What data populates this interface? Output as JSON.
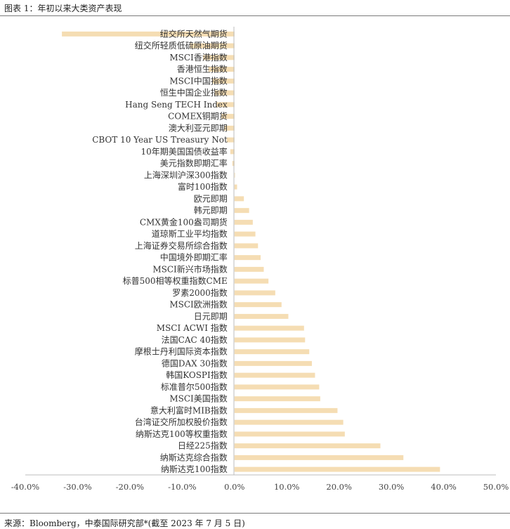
{
  "figure_title": "图表 1：年初以来大类资产表现",
  "source_note": "来源：Bloomberg，中泰国际研究部*(截至 2023 年 7 月 5 日)",
  "chart_data": {
    "type": "bar",
    "orientation": "horizontal",
    "title": "",
    "xlabel": "",
    "ylabel": "",
    "xlim": [
      -40,
      50
    ],
    "x_ticks": [
      "-40.0%",
      "-30.0%",
      "-20.0%",
      "-10.0%",
      "0.0%",
      "10.0%",
      "20.0%",
      "30.0%",
      "40.0%",
      "50.0%"
    ],
    "grid": false,
    "legend": "none",
    "bar_color": "#F5DDB3",
    "categories": [
      "纽交所天然气期货",
      "纽交所轻质低硫原油期货",
      "MSCI香港指数",
      "香港恒生指数",
      "MSCI中国指数",
      "恒生中国企业指数",
      "Hang Seng TECH Index",
      "COMEX铜期货",
      "澳大利亚元即期",
      "CBOT 10 Year US Treasury Not",
      "10年期美国国债收益率",
      "美元指数即期汇率",
      "上海深圳沪深300指数",
      "富时100指数",
      "欧元即期",
      "韩元即期",
      "CMX黄金100盎司期货",
      "道琼斯工业平均指数",
      "上海证券交易所综合指数",
      "中国境外即期汇率",
      "MSCI新兴市场指数",
      "标普500相等权重指数CME",
      "罗素2000指数",
      "MSCI欧洲指数",
      "日元即期",
      "MSCI ACWI 指数",
      "法国CAC 40指数",
      "摩根士丹利国际资本指数",
      "德国DAX 30指数",
      "韩国KOSPI指数",
      "标准普尔500指数",
      "MSCI美国指数",
      "意大利富时MIB指数",
      "台湾证交所加权股价指数",
      "纳斯达克100等权重指数",
      "日经225指数",
      "纳斯达克综合指数",
      "纳斯达克100指数"
    ],
    "values": [
      -33.0,
      -8.5,
      -6.0,
      -5.0,
      -4.2,
      -3.8,
      -3.5,
      -2.5,
      -2.0,
      -1.5,
      -0.8,
      -0.4,
      0.1,
      0.5,
      1.8,
      2.8,
      3.5,
      4.0,
      4.5,
      5.0,
      5.6,
      6.5,
      7.8,
      9.0,
      10.3,
      13.3,
      13.5,
      14.3,
      14.8,
      15.4,
      16.2,
      16.4,
      19.7,
      20.8,
      21.1,
      27.9,
      32.3,
      39.3
    ]
  }
}
